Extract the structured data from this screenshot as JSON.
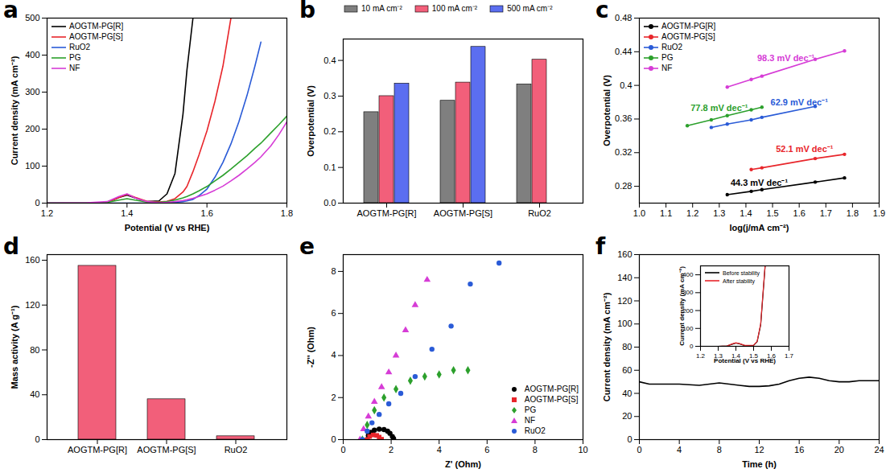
{
  "chart_data": [
    {
      "type": "line",
      "title": "a",
      "x_label": "Potential (V vs RHE)",
      "y_label": "Current density (mA cm⁻²)",
      "xlim": [
        1.2,
        1.8
      ],
      "xticks": [
        1.2,
        1.4,
        1.6,
        1.8
      ],
      "ylim": [
        0,
        500
      ],
      "yticks": [
        0,
        100,
        200,
        300,
        400,
        500
      ],
      "legend": "top-left",
      "x": [
        1.2,
        1.3,
        1.35,
        1.38,
        1.4,
        1.42,
        1.45,
        1.48,
        1.5,
        1.52,
        1.54,
        1.55,
        1.565,
        1.58,
        1.6,
        1.62,
        1.64,
        1.66,
        1.68,
        1.7,
        1.72,
        1.735,
        1.76,
        1.78,
        1.8
      ],
      "series": [
        {
          "name": "AOGTM-PG[R]",
          "color": "#000000",
          "values": [
            0,
            0,
            2,
            15,
            22,
            14,
            4,
            6,
            25,
            80,
            240,
            360,
            500,
            null,
            null,
            null,
            null,
            null,
            null,
            null,
            null,
            null,
            null,
            null,
            null
          ]
        },
        {
          "name": "AOGTM-PG[S]",
          "color": "#e8262b",
          "values": [
            0,
            0,
            2,
            15,
            24,
            16,
            5,
            3,
            5,
            12,
            30,
            45,
            85,
            130,
            195,
            275,
            370,
            500,
            null,
            null,
            null,
            null,
            null,
            null,
            null
          ]
        },
        {
          "name": "RuO2",
          "color": "#2a5bd7",
          "values": [
            0,
            0,
            0,
            0,
            0,
            0,
            0,
            0,
            1,
            2,
            4,
            6,
            10,
            20,
            38,
            70,
            110,
            160,
            220,
            290,
            370,
            435,
            null,
            null,
            null
          ]
        },
        {
          "name": "PG",
          "color": "#2ca02c",
          "values": [
            0,
            0,
            2,
            8,
            12,
            8,
            3,
            2,
            4,
            8,
            14,
            18,
            25,
            33,
            45,
            60,
            75,
            92,
            110,
            128,
            148,
            162,
            190,
            212,
            235
          ]
        },
        {
          "name": "NF",
          "color": "#d63cd6",
          "values": [
            0,
            1,
            4,
            18,
            25,
            14,
            4,
            1,
            2,
            4,
            7,
            9,
            13,
            18,
            25,
            35,
            46,
            60,
            75,
            92,
            110,
            125,
            155,
            185,
            220
          ]
        }
      ]
    },
    {
      "type": "bar",
      "title": "b",
      "y_label": "Overpotential (V)",
      "ylim": [
        0,
        0.46
      ],
      "yticks": [
        {
          "value": 0,
          "label": "0.0"
        },
        0.1,
        0.2,
        0.3,
        0.4
      ],
      "legend": "top",
      "categories": [
        "AOGTM-PG[R]",
        "AOGTM-PG[S]",
        "RuO2"
      ],
      "series": [
        {
          "name": "10 mA cm⁻²",
          "color": "#7f7f7f",
          "values": [
            0.255,
            0.287,
            0.333
          ]
        },
        {
          "name": "100 mA cm⁻²",
          "color": "#f25f7a",
          "values": [
            0.3,
            0.338,
            0.402
          ]
        },
        {
          "name": "500 mA cm⁻²",
          "color": "#5b6ef0",
          "values": [
            0.335,
            0.438,
            null
          ]
        }
      ]
    },
    {
      "type": "line",
      "title": "c",
      "x_label": "log(j/mA cm⁻²)",
      "y_label": "Overpotential (V)",
      "xlim": [
        1.0,
        1.9
      ],
      "xticks": [
        {
          "value": 1,
          "label": "1.0"
        },
        1.1,
        1.2,
        1.3,
        1.4,
        1.5,
        1.6,
        1.7,
        1.8,
        1.9
      ],
      "ylim": [
        0.26,
        0.48
      ],
      "yticks": [
        0.28,
        0.32,
        0.36,
        0.4,
        0.44,
        0.48
      ],
      "legend": "top-left",
      "marker": "circle",
      "x": [
        1.18,
        1.27,
        1.33,
        1.42,
        1.46,
        1.66,
        1.77
      ],
      "series": [
        {
          "name": "AOGTM-PG[R]",
          "color": "#000000",
          "values": [
            null,
            null,
            0.27,
            0.274,
            0.276,
            0.285,
            0.29
          ]
        },
        {
          "name": "AOGTM-PG[S]",
          "color": "#e8262b",
          "values": [
            null,
            null,
            null,
            0.3,
            0.302,
            0.313,
            0.318
          ]
        },
        {
          "name": "RuO2",
          "color": "#2a5bd7",
          "values": [
            null,
            0.35,
            0.354,
            0.359,
            0.362,
            0.375,
            null
          ]
        },
        {
          "name": "PG",
          "color": "#2ca02c",
          "values": [
            0.352,
            0.359,
            0.364,
            0.371,
            0.374,
            null,
            null
          ]
        },
        {
          "name": "NF",
          "color": "#d63cd6",
          "values": [
            null,
            null,
            0.398,
            0.407,
            0.411,
            0.431,
            0.441
          ]
        }
      ],
      "annotations": [
        {
          "text": "44.3 mV dec⁻¹",
          "x": 1.45,
          "y": 0.284,
          "color": "#000000"
        },
        {
          "text": "52.1 mV dec⁻¹",
          "x": 1.62,
          "y": 0.324,
          "color": "#e8262b"
        },
        {
          "text": "77.8 mV dec⁻¹",
          "x": 1.3,
          "y": 0.373,
          "color": "#2ca02c"
        },
        {
          "text": "62.9 mV dec⁻¹",
          "x": 1.6,
          "y": 0.38,
          "color": "#2a5bd7"
        },
        {
          "text": "98.3 mV dec⁻¹",
          "x": 1.55,
          "y": 0.432,
          "color": "#d63cd6"
        }
      ]
    },
    {
      "type": "bar",
      "title": "d",
      "y_label": "Mass activity (A g⁻¹)",
      "ylim": [
        0,
        165
      ],
      "yticks": [
        0,
        40,
        80,
        120,
        160
      ],
      "categories": [
        "AOGTM-PG[R]",
        "AOGTM-PG[S]",
        "RuO2"
      ],
      "values": [
        155,
        36,
        3
      ],
      "color": "#f25f7a"
    },
    {
      "type": "scatter",
      "title": "e",
      "x_label": "Z' (Ohm)",
      "y_label": "-Z'' (Ohm)",
      "xlim": [
        0,
        10
      ],
      "xticks": [
        0,
        2,
        4,
        6,
        8,
        10
      ],
      "ylim": [
        0,
        8.8
      ],
      "yticks": [
        0,
        2,
        4,
        6,
        8
      ],
      "legend": "bottom-right",
      "series": [
        {
          "name": "AOGTM-PG[R]",
          "color": "#000000",
          "marker": "circle",
          "x": [
            1.0,
            1.05,
            1.15,
            1.3,
            1.5,
            1.7,
            1.85,
            1.95,
            2.05,
            2.1
          ],
          "values": [
            0,
            0.2,
            0.35,
            0.45,
            0.5,
            0.48,
            0.4,
            0.3,
            0.15,
            0.05
          ]
        },
        {
          "name": "AOGTM-PG[S]",
          "color": "#e8262b",
          "marker": "square",
          "x": [
            1.0,
            1.1,
            1.25,
            1.4,
            1.5,
            1.6
          ],
          "values": [
            0,
            0.15,
            0.22,
            0.2,
            0.12,
            0.02
          ]
        },
        {
          "name": "PG",
          "color": "#2ca02c",
          "marker": "diamond",
          "x": [
            0.8,
            1.0,
            1.3,
            1.7,
            2.2,
            2.8,
            3.4,
            4.0,
            4.6,
            5.2
          ],
          "values": [
            0,
            0.7,
            1.4,
            2.0,
            2.4,
            2.8,
            3.0,
            3.1,
            3.3,
            3.3
          ]
        },
        {
          "name": "NF",
          "color": "#d63cd6",
          "marker": "triangle",
          "x": [
            0.7,
            0.85,
            1.05,
            1.3,
            1.6,
            1.9,
            2.2,
            2.6,
            3.0,
            3.5
          ],
          "values": [
            0,
            0.5,
            1.1,
            1.8,
            2.5,
            3.2,
            4.0,
            5.2,
            6.4,
            7.6
          ]
        },
        {
          "name": "RuO2",
          "color": "#2a5bd7",
          "marker": "circle",
          "x": [
            0.8,
            1.0,
            1.2,
            1.5,
            1.9,
            2.4,
            3.0,
            3.7,
            4.5,
            5.3,
            6.5
          ],
          "values": [
            0,
            0.4,
            0.8,
            1.2,
            1.7,
            2.2,
            3.0,
            4.3,
            5.4,
            7.4,
            8.4
          ]
        }
      ]
    },
    {
      "type": "line",
      "title": "f",
      "x_label": "Time (h)",
      "y_label": "Current density (mA cm⁻²)",
      "xlim": [
        0,
        24
      ],
      "xticks": [
        0,
        4,
        8,
        12,
        16,
        20,
        24
      ],
      "ylim": [
        0,
        160
      ],
      "yticks": [
        0,
        20,
        40,
        60,
        80,
        100,
        120,
        140,
        160
      ],
      "color": "#000000",
      "x": [
        0,
        1,
        2,
        3,
        4,
        5,
        6,
        7,
        8,
        9,
        10,
        11,
        12,
        13,
        14,
        15,
        16,
        17,
        18,
        19,
        20,
        21,
        22,
        23,
        24
      ],
      "values": [
        50,
        48,
        48,
        48,
        48,
        47.5,
        47,
        48,
        49,
        48,
        47,
        46,
        46,
        46.5,
        48,
        51,
        53,
        54,
        53,
        51,
        50,
        50,
        51,
        51,
        51
      ]
    },
    {
      "type": "line",
      "x_label": "Potential (V vs RHE)",
      "y_label": "Current density (mA cm⁻²)",
      "xlim": [
        1.2,
        1.7
      ],
      "xticks": [
        1.2,
        1.3,
        1.4,
        1.5,
        1.6,
        1.7
      ],
      "ylim": [
        0,
        450
      ],
      "yticks": [
        0,
        100,
        200,
        300,
        400
      ],
      "legend": "top-left",
      "x": [
        1.2,
        1.3,
        1.35,
        1.38,
        1.4,
        1.42,
        1.45,
        1.5,
        1.52,
        1.54,
        1.55,
        1.56,
        1.565
      ],
      "series": [
        {
          "name": "Before stability",
          "color": "#000000",
          "values": [
            0,
            0,
            2,
            12,
            18,
            14,
            4,
            5,
            25,
            120,
            250,
            380,
            450
          ]
        },
        {
          "name": "After stability",
          "color": "#e8262b",
          "values": [
            0,
            0,
            2,
            14,
            20,
            15,
            5,
            6,
            28,
            125,
            260,
            390,
            450
          ]
        }
      ]
    }
  ]
}
